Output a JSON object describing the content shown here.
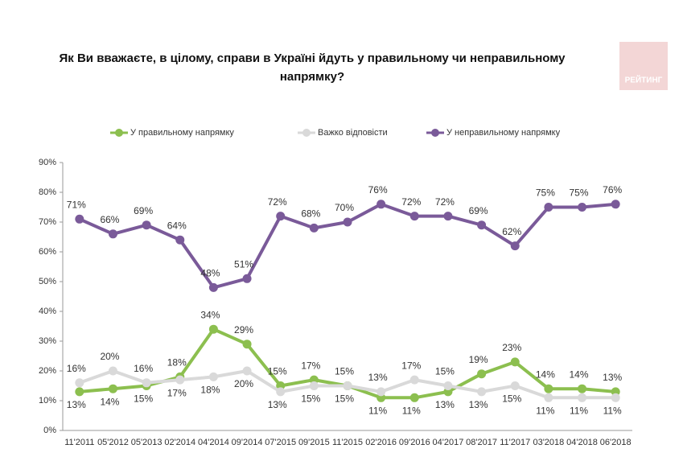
{
  "logo": "РЕЙТИНГ",
  "chart_data": {
    "type": "line",
    "title": [
      "Як Ви вважаєте, в цілому, справи в Україні йдуть у правильному чи неправильному",
      "напрямку?"
    ],
    "categories": [
      "11'2011",
      "05'2012",
      "05'2013",
      "02'2014",
      "04'2014",
      "09'2014",
      "07'2015",
      "09'2015",
      "11'2015",
      "02'2016",
      "09'2016",
      "04'2017",
      "08'2017",
      "11'2017",
      "03'2018",
      "04'2018",
      "06'2018"
    ],
    "series": [
      {
        "name": "У правильному напрямку",
        "color": "#8cbf4f",
        "values": [
          13,
          14,
          15,
          18,
          34,
          29,
          15,
          17,
          15,
          11,
          11,
          13,
          19,
          23,
          14,
          14,
          13
        ],
        "value_labels": [
          "13%",
          "14%",
          "15%",
          "18%",
          "34%",
          "29%",
          "15%",
          "17%",
          "15%",
          "11%",
          "11%",
          "13%",
          "19%",
          "23%",
          "14%",
          "14%",
          "13%"
        ]
      },
      {
        "name": "Важко відповісти",
        "color": "#d9d9d9",
        "values": [
          16,
          20,
          16,
          17,
          18,
          20,
          13,
          15,
          15,
          13,
          17,
          15,
          13,
          15,
          11,
          11,
          11
        ],
        "value_labels": [
          "16%",
          "20%",
          "16%",
          "17%",
          "18%",
          "20%",
          "13%",
          "15%",
          "15%",
          "13%",
          "17%",
          "15%",
          "13%",
          "15%",
          "11%",
          "11%",
          "11%"
        ]
      },
      {
        "name": "У неправильному напрямку",
        "color": "#7a5a99",
        "values": [
          71,
          66,
          69,
          64,
          48,
          51,
          72,
          68,
          70,
          76,
          72,
          72,
          69,
          62,
          75,
          75,
          76
        ],
        "value_labels": [
          "71%",
          "66%",
          "69%",
          "64%",
          "48%",
          "51%",
          "72%",
          "68%",
          "70%",
          "76%",
          "72%",
          "72%",
          "69%",
          "62%",
          "75%",
          "75%",
          "76%"
        ]
      }
    ],
    "ylim": [
      0,
      90
    ],
    "yticks": [
      {
        "value": 0,
        "label": "0%"
      },
      {
        "value": 10,
        "label": "10%"
      },
      {
        "value": 20,
        "label": "20%"
      },
      {
        "value": 30,
        "label": "30%"
      },
      {
        "value": 40,
        "label": "40%"
      },
      {
        "value": 50,
        "label": "50%"
      },
      {
        "value": 60,
        "label": "60%"
      },
      {
        "value": 70,
        "label": "70%"
      },
      {
        "value": 80,
        "label": "80%"
      },
      {
        "value": 90,
        "label": "90%"
      }
    ],
    "legend": "top"
  }
}
